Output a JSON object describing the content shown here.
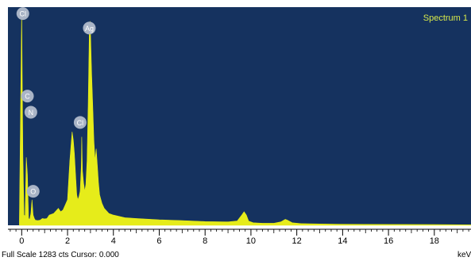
{
  "window": {
    "footer_left": "Full Scale 1283 cts Cursor: 0.000",
    "footer_right": "keV"
  },
  "colors": {
    "plot_background": "#15325f",
    "spectrum_fill": "#e6ec1a",
    "peak_label_bg": "#a9b4c6",
    "peak_label_text": "#ffffff",
    "spectrum_label": "#d7e84a",
    "axis": "#000000"
  },
  "chart_data": {
    "type": "area",
    "title": "Spectrum 1",
    "xlabel": "keV",
    "ylabel": "",
    "xlim": [
      -0.6,
      19.6
    ],
    "ylim": [
      0,
      1283
    ],
    "full_scale_counts": 1283,
    "cursor": 0.0,
    "x_ticks": [
      0,
      2,
      4,
      6,
      8,
      10,
      12,
      14,
      16,
      18
    ],
    "x_tick_labels": [
      "0",
      "2",
      "4",
      "6",
      "8",
      "10",
      "12",
      "14",
      "16",
      "18"
    ],
    "grid": false,
    "legend": "none",
    "x": [
      -0.1,
      0.0,
      0.05,
      0.1,
      0.15,
      0.2,
      0.25,
      0.3,
      0.35,
      0.4,
      0.45,
      0.5,
      0.55,
      0.6,
      0.7,
      0.8,
      0.9,
      1.0,
      1.1,
      1.2,
      1.4,
      1.6,
      1.7,
      1.8,
      1.9,
      2.0,
      2.1,
      2.2,
      2.25,
      2.3,
      2.35,
      2.4,
      2.45,
      2.5,
      2.55,
      2.6,
      2.62,
      2.65,
      2.7,
      2.75,
      2.8,
      2.85,
      2.9,
      2.95,
      2.98,
      3.0,
      3.05,
      3.1,
      3.15,
      3.2,
      3.25,
      3.3,
      3.35,
      3.4,
      3.5,
      3.6,
      3.8,
      4.0,
      4.5,
      5.0,
      6.0,
      7.0,
      8.0,
      9.0,
      9.4,
      9.6,
      9.7,
      9.8,
      9.9,
      10.1,
      10.5,
      11.0,
      11.3,
      11.5,
      11.6,
      11.8,
      12.2,
      13.0,
      14.0,
      16.0,
      18.0,
      19.6
    ],
    "y": [
      30,
      1275,
      420,
      60,
      55,
      400,
      300,
      40,
      35,
      70,
      150,
      60,
      40,
      30,
      28,
      30,
      40,
      38,
      40,
      60,
      70,
      100,
      80,
      90,
      120,
      150,
      380,
      550,
      500,
      420,
      300,
      180,
      150,
      170,
      200,
      350,
      520,
      320,
      250,
      200,
      240,
      380,
      700,
      1150,
      1200,
      1140,
      900,
      700,
      500,
      380,
      450,
      350,
      250,
      180,
      130,
      100,
      70,
      60,
      45,
      40,
      32,
      28,
      22,
      20,
      25,
      60,
      80,
      60,
      25,
      15,
      12,
      12,
      20,
      35,
      30,
      15,
      10,
      8,
      6,
      5,
      4,
      3
    ],
    "peak_labels": [
      {
        "label": "Cl",
        "x": 0.05,
        "y": 1245
      },
      {
        "label": "Ag",
        "x": 2.95,
        "y": 1160
      },
      {
        "label": "C",
        "x": 0.25,
        "y": 760
      },
      {
        "label": "N",
        "x": 0.4,
        "y": 665
      },
      {
        "label": "Cl",
        "x": 2.55,
        "y": 605
      },
      {
        "label": "O",
        "x": 0.5,
        "y": 200
      }
    ]
  }
}
